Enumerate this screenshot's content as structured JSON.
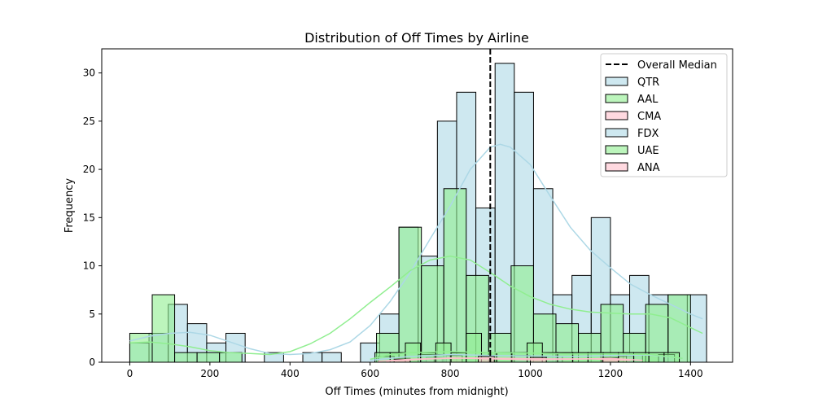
{
  "chart_data": {
    "type": "histogram",
    "title": "Distribution of Off Times by Airline",
    "xlabel": "Off Times (minutes from midnight)",
    "ylabel": "Frequency",
    "xlim": [
      -70,
      1505
    ],
    "ylim": [
      0,
      32.5
    ],
    "xticks": [
      0,
      200,
      400,
      600,
      800,
      1000,
      1200,
      1400
    ],
    "yticks": [
      0,
      5,
      10,
      15,
      20,
      25,
      30
    ],
    "grid": false,
    "legend_position": "top-right",
    "median_line": {
      "label": "Overall Median",
      "x": 900,
      "color": "#000000"
    },
    "series": [
      {
        "name": "QTR",
        "color": "#add8e6",
        "bins": [
          {
            "x0": 0,
            "x1": 48,
            "y": 2
          },
          {
            "x0": 48,
            "x1": 96,
            "y": 3
          },
          {
            "x0": 96,
            "x1": 144,
            "y": 6
          },
          {
            "x0": 144,
            "x1": 192,
            "y": 4
          },
          {
            "x0": 192,
            "x1": 240,
            "y": 2
          },
          {
            "x0": 240,
            "x1": 288,
            "y": 3
          },
          {
            "x0": 336,
            "x1": 384,
            "y": 1
          },
          {
            "x0": 432,
            "x1": 480,
            "y": 1
          },
          {
            "x0": 480,
            "x1": 528,
            "y": 1
          },
          {
            "x0": 576,
            "x1": 624,
            "y": 2
          },
          {
            "x0": 624,
            "x1": 672,
            "y": 5
          },
          {
            "x0": 672,
            "x1": 720,
            "y": 14
          },
          {
            "x0": 720,
            "x1": 768,
            "y": 11
          },
          {
            "x0": 768,
            "x1": 816,
            "y": 25
          },
          {
            "x0": 816,
            "x1": 864,
            "y": 28
          },
          {
            "x0": 864,
            "x1": 912,
            "y": 16
          },
          {
            "x0": 912,
            "x1": 960,
            "y": 31
          },
          {
            "x0": 960,
            "x1": 1008,
            "y": 28
          },
          {
            "x0": 1008,
            "x1": 1056,
            "y": 18
          },
          {
            "x0": 1056,
            "x1": 1104,
            "y": 7
          },
          {
            "x0": 1104,
            "x1": 1152,
            "y": 9
          },
          {
            "x0": 1152,
            "x1": 1200,
            "y": 15
          },
          {
            "x0": 1200,
            "x1": 1248,
            "y": 7
          },
          {
            "x0": 1248,
            "x1": 1296,
            "y": 9
          },
          {
            "x0": 1296,
            "x1": 1344,
            "y": 7
          },
          {
            "x0": 1344,
            "x1": 1392,
            "y": 7
          },
          {
            "x0": 1392,
            "x1": 1440,
            "y": 7
          }
        ],
        "kde": [
          [
            0,
            2.2
          ],
          [
            50,
            2.7
          ],
          [
            100,
            3.0
          ],
          [
            150,
            3.1
          ],
          [
            200,
            2.8
          ],
          [
            250,
            2.1
          ],
          [
            300,
            1.4
          ],
          [
            350,
            0.9
          ],
          [
            400,
            0.8
          ],
          [
            450,
            0.9
          ],
          [
            500,
            1.3
          ],
          [
            550,
            2.1
          ],
          [
            600,
            3.8
          ],
          [
            650,
            6.3
          ],
          [
            700,
            9.3
          ],
          [
            750,
            12.8
          ],
          [
            800,
            16.2
          ],
          [
            850,
            20.0
          ],
          [
            900,
            22.3
          ],
          [
            925,
            22.6
          ],
          [
            950,
            22.3
          ],
          [
            1000,
            20.5
          ],
          [
            1050,
            17.2
          ],
          [
            1100,
            14.0
          ],
          [
            1150,
            11.6
          ],
          [
            1200,
            9.8
          ],
          [
            1250,
            8.1
          ],
          [
            1300,
            7.0
          ],
          [
            1350,
            6.0
          ],
          [
            1400,
            5.0
          ],
          [
            1430,
            4.5
          ]
        ]
      },
      {
        "name": "AAL",
        "color": "#90ee90",
        "bins": [
          {
            "x0": 0,
            "x1": 56,
            "y": 3
          },
          {
            "x0": 56,
            "x1": 112,
            "y": 7
          },
          {
            "x0": 112,
            "x1": 168,
            "y": 1
          },
          {
            "x0": 168,
            "x1": 224,
            "y": 1
          },
          {
            "x0": 224,
            "x1": 280,
            "y": 1
          },
          {
            "x0": 616,
            "x1": 672,
            "y": 3
          },
          {
            "x0": 672,
            "x1": 728,
            "y": 14
          },
          {
            "x0": 728,
            "x1": 784,
            "y": 10
          },
          {
            "x0": 784,
            "x1": 840,
            "y": 18
          },
          {
            "x0": 840,
            "x1": 896,
            "y": 9
          },
          {
            "x0": 896,
            "x1": 952,
            "y": 3
          },
          {
            "x0": 952,
            "x1": 1008,
            "y": 10
          },
          {
            "x0": 1008,
            "x1": 1064,
            "y": 5
          },
          {
            "x0": 1064,
            "x1": 1120,
            "y": 4
          },
          {
            "x0": 1120,
            "x1": 1176,
            "y": 3
          },
          {
            "x0": 1176,
            "x1": 1232,
            "y": 6
          },
          {
            "x0": 1232,
            "x1": 1288,
            "y": 3
          },
          {
            "x0": 1288,
            "x1": 1344,
            "y": 6
          },
          {
            "x0": 1344,
            "x1": 1400,
            "y": 7
          }
        ],
        "kde": [
          [
            0,
            2.0
          ],
          [
            50,
            2.1
          ],
          [
            100,
            1.9
          ],
          [
            150,
            1.6
          ],
          [
            200,
            1.2
          ],
          [
            250,
            1.0
          ],
          [
            300,
            0.9
          ],
          [
            350,
            0.8
          ],
          [
            400,
            1.1
          ],
          [
            450,
            1.9
          ],
          [
            500,
            3.0
          ],
          [
            550,
            4.5
          ],
          [
            600,
            6.2
          ],
          [
            650,
            7.8
          ],
          [
            700,
            9.5
          ],
          [
            750,
            10.6
          ],
          [
            800,
            11.0
          ],
          [
            850,
            10.6
          ],
          [
            900,
            9.3
          ],
          [
            950,
            7.9
          ],
          [
            1000,
            6.8
          ],
          [
            1050,
            6.0
          ],
          [
            1100,
            5.5
          ],
          [
            1150,
            5.2
          ],
          [
            1200,
            5.1
          ],
          [
            1250,
            5.0
          ],
          [
            1300,
            5.0
          ],
          [
            1350,
            4.6
          ],
          [
            1400,
            3.6
          ],
          [
            1430,
            3.0
          ]
        ]
      },
      {
        "name": "CMA",
        "color": "#ffc0cb",
        "bins": [
          {
            "x0": 660,
            "x1": 700,
            "y": 0.4
          },
          {
            "x0": 740,
            "x1": 780,
            "y": 0.5
          },
          {
            "x0": 790,
            "x1": 830,
            "y": 0.7
          },
          {
            "x0": 1180,
            "x1": 1220,
            "y": 0.5
          },
          {
            "x0": 1220,
            "x1": 1260,
            "y": 0.6
          }
        ],
        "kde": [
          [
            620,
            0.1
          ],
          [
            700,
            0.3
          ],
          [
            800,
            0.45
          ],
          [
            900,
            0.35
          ],
          [
            1000,
            0.25
          ],
          [
            1100,
            0.3
          ],
          [
            1200,
            0.4
          ],
          [
            1280,
            0.2
          ]
        ]
      },
      {
        "name": "FDX",
        "color": "#add8e6",
        "bins": [
          {
            "x0": 620,
            "x1": 660,
            "y": 0.6
          },
          {
            "x0": 720,
            "x1": 760,
            "y": 0.8
          },
          {
            "x0": 760,
            "x1": 800,
            "y": 0.8
          },
          {
            "x0": 960,
            "x1": 1000,
            "y": 0.7
          },
          {
            "x0": 1040,
            "x1": 1080,
            "y": 0.6
          },
          {
            "x0": 1240,
            "x1": 1280,
            "y": 0.8
          },
          {
            "x0": 1320,
            "x1": 1360,
            "y": 0.8
          }
        ],
        "kde": [
          [
            600,
            0.2
          ],
          [
            700,
            0.6
          ],
          [
            800,
            0.8
          ],
          [
            900,
            0.7
          ],
          [
            1000,
            0.65
          ],
          [
            1100,
            0.6
          ],
          [
            1200,
            0.7
          ],
          [
            1300,
            0.75
          ],
          [
            1380,
            0.4
          ]
        ]
      },
      {
        "name": "UAE",
        "color": "#90ee90",
        "bins": [
          {
            "x0": 612,
            "x1": 650,
            "y": 1
          },
          {
            "x0": 650,
            "x1": 688,
            "y": 1
          },
          {
            "x0": 688,
            "x1": 726,
            "y": 2
          },
          {
            "x0": 726,
            "x1": 764,
            "y": 1
          },
          {
            "x0": 764,
            "x1": 802,
            "y": 2
          },
          {
            "x0": 802,
            "x1": 840,
            "y": 1
          },
          {
            "x0": 840,
            "x1": 878,
            "y": 3
          },
          {
            "x0": 878,
            "x1": 916,
            "y": 1
          },
          {
            "x0": 916,
            "x1": 954,
            "y": 1
          },
          {
            "x0": 954,
            "x1": 992,
            "y": 1
          },
          {
            "x0": 992,
            "x1": 1030,
            "y": 2
          },
          {
            "x0": 1030,
            "x1": 1068,
            "y": 1
          },
          {
            "x0": 1068,
            "x1": 1106,
            "y": 1
          },
          {
            "x0": 1106,
            "x1": 1144,
            "y": 1
          },
          {
            "x0": 1144,
            "x1": 1182,
            "y": 1
          },
          {
            "x0": 1182,
            "x1": 1220,
            "y": 1
          },
          {
            "x0": 1220,
            "x1": 1258,
            "y": 1
          },
          {
            "x0": 1258,
            "x1": 1296,
            "y": 1
          },
          {
            "x0": 1296,
            "x1": 1334,
            "y": 1
          },
          {
            "x0": 1334,
            "x1": 1372,
            "y": 1
          }
        ],
        "kde": [
          [
            600,
            0.3
          ],
          [
            650,
            0.8
          ],
          [
            700,
            1.0
          ],
          [
            800,
            1.1
          ],
          [
            900,
            1.0
          ],
          [
            1000,
            0.95
          ],
          [
            1100,
            0.85
          ],
          [
            1200,
            0.85
          ],
          [
            1300,
            0.8
          ],
          [
            1380,
            0.4
          ]
        ]
      },
      {
        "name": "ANA",
        "color": "#ffc0cb",
        "bins": [
          {
            "x0": 660,
            "x1": 700,
            "y": 0.3
          },
          {
            "x0": 870,
            "x1": 910,
            "y": 0.6
          },
          {
            "x0": 1000,
            "x1": 1040,
            "y": 0.5
          },
          {
            "x0": 1180,
            "x1": 1220,
            "y": 0.4
          }
        ],
        "kde": [
          [
            640,
            0.1
          ],
          [
            750,
            0.35
          ],
          [
            850,
            0.45
          ],
          [
            950,
            0.4
          ],
          [
            1050,
            0.35
          ],
          [
            1150,
            0.35
          ],
          [
            1250,
            0.2
          ]
        ]
      }
    ]
  }
}
